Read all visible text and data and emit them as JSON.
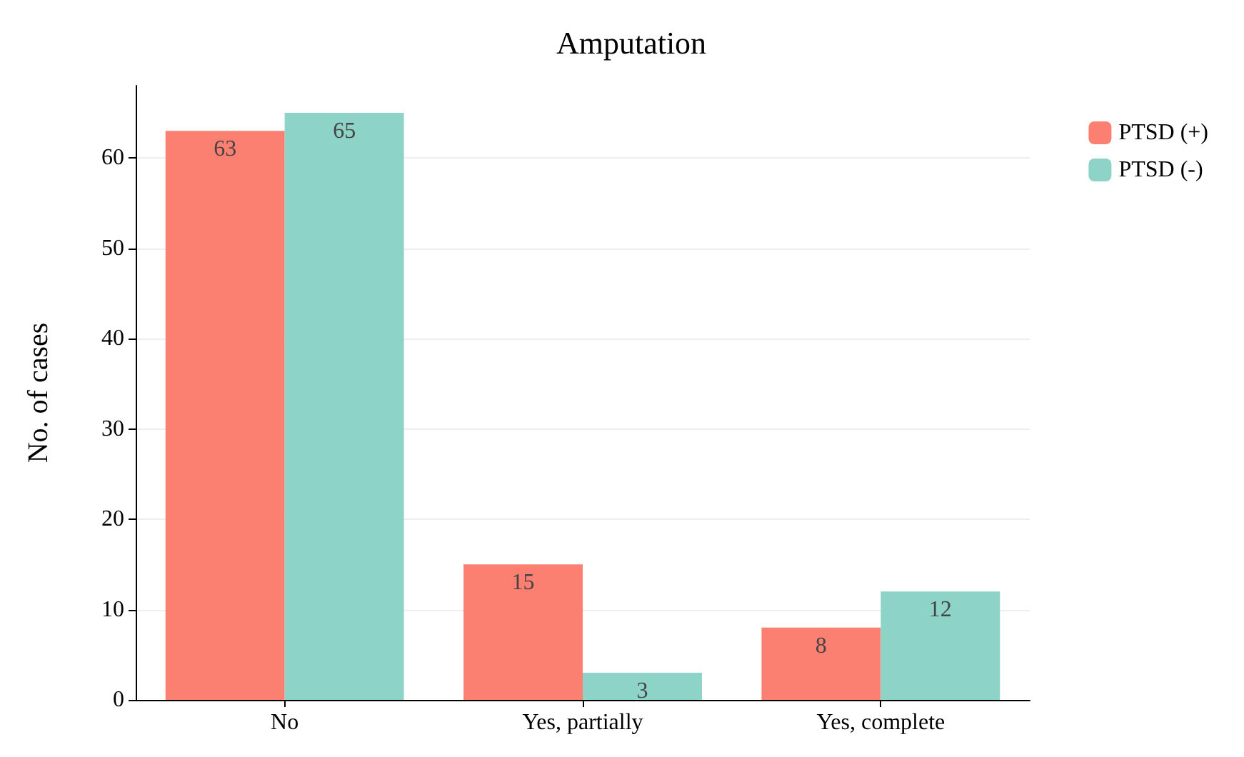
{
  "chart_data": {
    "type": "bar",
    "title": "Amputation",
    "ylabel": "No. of cases",
    "categories": [
      "No",
      "Yes, partially",
      "Yes, complete"
    ],
    "series": [
      {
        "name": "PTSD (+)",
        "color": "#fb8072",
        "values": [
          63,
          15,
          8
        ]
      },
      {
        "name": "PTSD (-)",
        "color": "#8dd3c7",
        "values": [
          65,
          3,
          12
        ]
      }
    ],
    "ylim": [
      0,
      68
    ],
    "yticks": [
      0,
      10,
      20,
      30,
      40,
      50,
      60
    ],
    "grid": "y",
    "legend": "top right",
    "data_labels": true
  }
}
